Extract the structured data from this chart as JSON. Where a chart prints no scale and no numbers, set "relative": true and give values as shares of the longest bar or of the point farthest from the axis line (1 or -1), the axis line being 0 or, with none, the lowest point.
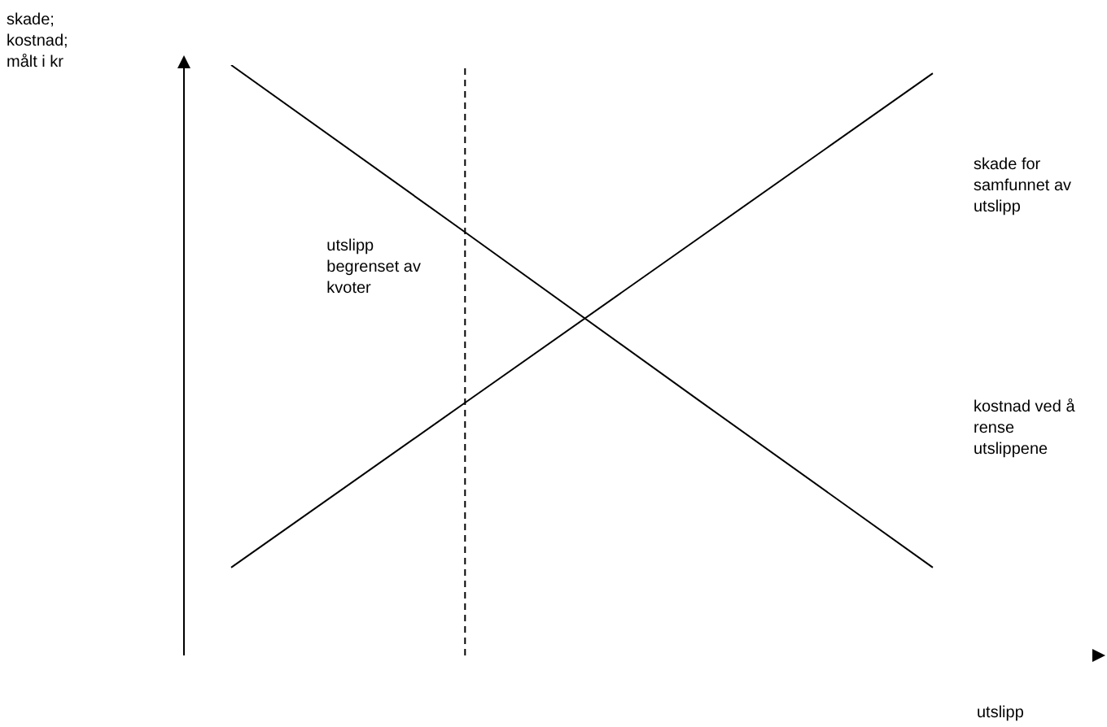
{
  "chart_data": {
    "type": "line",
    "relative": true,
    "ylabel": "skade; kostnad; målt i kr",
    "xlabel": "utslipp",
    "categories": [
      null,
      null,
      null,
      null
    ],
    "marker": "none",
    "line_style": "solid",
    "series": [
      {
        "name": "kostnad ved å rense utslippene",
        "color": "#000000",
        "values": [
          1,
          0.717,
          0.432,
          0.149
        ]
      },
      {
        "name": "skade for samfunnet av utslipp",
        "color": "#000000",
        "values": [
          0.149,
          0.428,
          0.707,
          0.986
        ]
      }
    ],
    "annotations": [
      "utslipp begrenset av kvoter"
    ]
  }
}
